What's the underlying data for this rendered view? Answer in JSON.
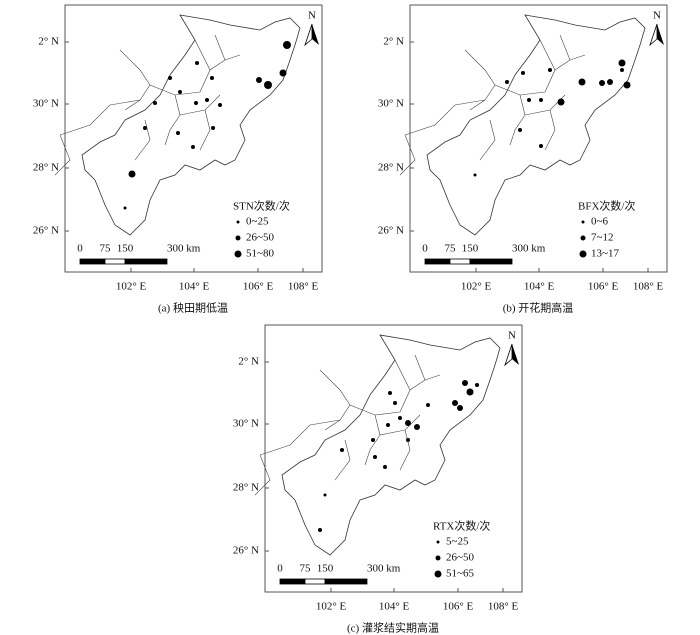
{
  "panels": [
    {
      "y_labels": [
        "2° N",
        "30° N",
        "28° N",
        "26° N"
      ],
      "x_labels": [
        "102° E",
        "104° E",
        "106° E",
        "108° E"
      ],
      "north": "N",
      "legend_title": "STN次数/次",
      "legend_items": [
        "0~25",
        "26~50",
        "51~80"
      ],
      "scale_labels": [
        "0",
        "75",
        "150",
        "300 km"
      ],
      "caption": "(a) 秧田期低温"
    },
    {
      "y_labels": [
        "2° N",
        "30° N",
        "28° N",
        "26° N"
      ],
      "x_labels": [
        "102° E",
        "104° E",
        "106° E",
        "108° E"
      ],
      "north": "N",
      "legend_title": "BFX次数/次",
      "legend_items": [
        "0~6",
        "7~12",
        "13~17"
      ],
      "scale_labels": [
        "0",
        "75",
        "150",
        "300 km"
      ],
      "caption": "(b) 开花期高温"
    },
    {
      "y_labels": [
        "2° N",
        "30° N",
        "28° N",
        "26° N"
      ],
      "x_labels": [
        "102° E",
        "104° E",
        "106° E",
        "108° E"
      ],
      "north": "N",
      "legend_title": "RTX次数/次",
      "legend_items": [
        "5~25",
        "26~50",
        "51~65"
      ],
      "scale_labels": [
        "0",
        "75",
        "150",
        "300 km"
      ],
      "caption": "(c) 灌浆结实期高温"
    }
  ]
}
